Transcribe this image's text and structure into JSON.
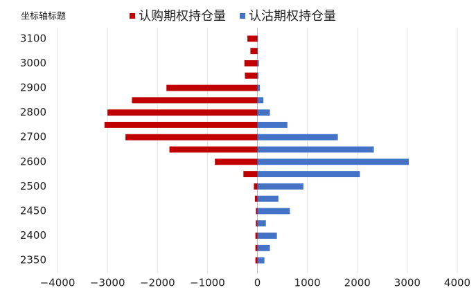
{
  "chart_data": {
    "type": "bar",
    "orientation": "horizontal",
    "y_axis_title": "坐标轴标题",
    "categories": [
      "3100",
      null,
      "3000",
      null,
      "2900",
      null,
      "2800",
      null,
      "2700",
      null,
      "2600",
      null,
      "2500",
      null,
      "2450",
      null,
      "2400",
      null,
      "2350"
    ],
    "series": [
      {
        "name": "认购期权持仓量",
        "color": "#c00000",
        "values": [
          -200,
          -140,
          -260,
          -250,
          -1820,
          -2510,
          -3000,
          -3060,
          -2640,
          -1760,
          -850,
          -280,
          -70,
          -50,
          -30,
          -30,
          -40,
          -40,
          -40
        ]
      },
      {
        "name": "认沽期权持仓量",
        "color": "#4472c4",
        "values": [
          10,
          10,
          30,
          20,
          50,
          120,
          250,
          600,
          1610,
          2330,
          3030,
          2050,
          920,
          420,
          650,
          170,
          390,
          250,
          140
        ]
      }
    ],
    "xlim": [
      -4000,
      4000
    ],
    "xticks": [
      {
        "value": -4000,
        "label": "−4000"
      },
      {
        "value": -3000,
        "label": "−3000"
      },
      {
        "value": -2000,
        "label": "−2000"
      },
      {
        "value": -1000,
        "label": "−1000"
      },
      0,
      1000,
      2000,
      3000,
      4000
    ],
    "grid": true
  }
}
